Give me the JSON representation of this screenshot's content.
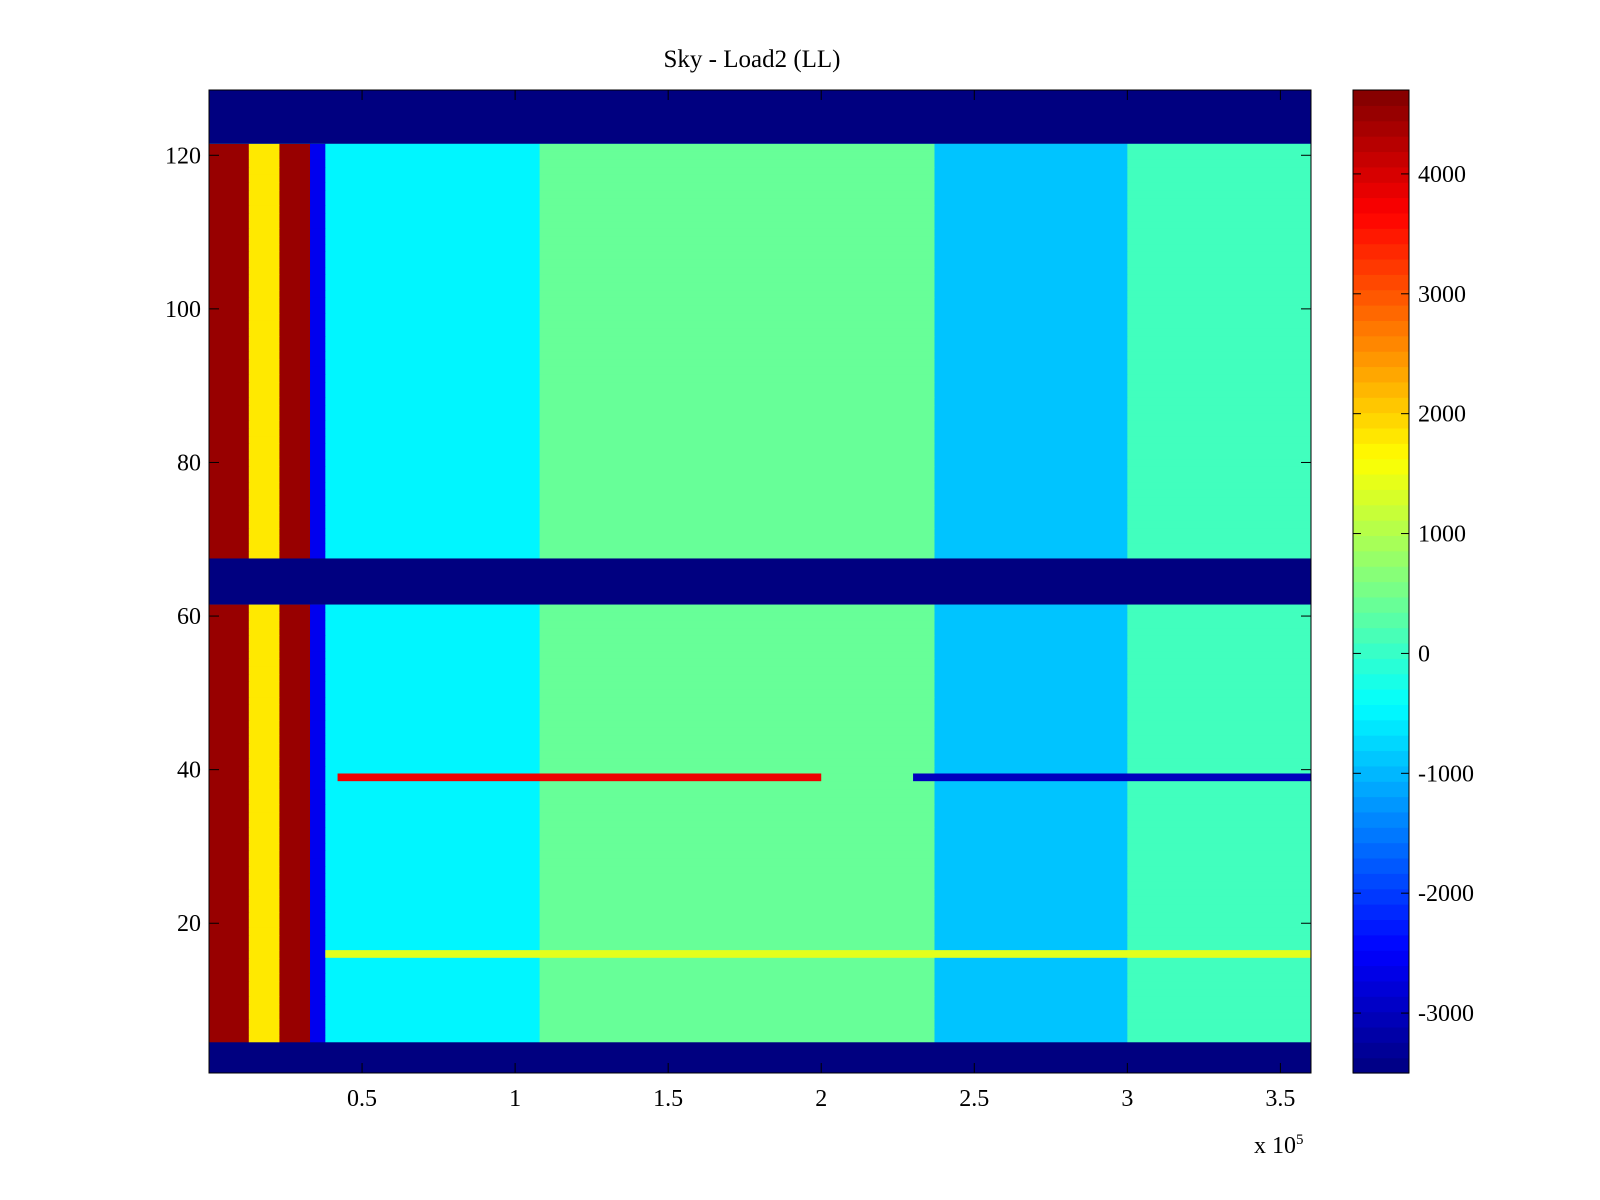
{
  "chart_data": {
    "type": "heatmap",
    "title": "Sky - Load2 (LL)",
    "xlabel": "",
    "ylabel": "",
    "x_exponent_label": "x 10",
    "x_exponent_power": "5",
    "xlim": [
      0,
      3.6
    ],
    "ylim": [
      0.5,
      128.5
    ],
    "x_ticks": [
      {
        "value": 0.5,
        "label": "0.5"
      },
      {
        "value": 1,
        "label": "1"
      },
      {
        "value": 1.5,
        "label": "1.5"
      },
      {
        "value": 2,
        "label": "2"
      },
      {
        "value": 2.5,
        "label": "2.5"
      },
      {
        "value": 3,
        "label": "3"
      },
      {
        "value": 3.5,
        "label": "3.5"
      }
    ],
    "y_ticks": [
      {
        "value": 20,
        "label": "20"
      },
      {
        "value": 40,
        "label": "40"
      },
      {
        "value": 60,
        "label": "60"
      },
      {
        "value": 80,
        "label": "80"
      },
      {
        "value": 100,
        "label": "100"
      },
      {
        "value": 120,
        "label": "120"
      }
    ],
    "colorbar": {
      "colormap": "jet",
      "range": [
        -3500,
        4700
      ],
      "ticks": [
        {
          "value": -3000,
          "label": "-3000"
        },
        {
          "value": -2000,
          "label": "-2000"
        },
        {
          "value": -1000,
          "label": "-1000"
        },
        {
          "value": 0,
          "label": "0"
        },
        {
          "value": 1000,
          "label": "1000"
        },
        {
          "value": 2000,
          "label": "2000"
        },
        {
          "value": 3000,
          "label": "3000"
        },
        {
          "value": 4000,
          "label": "4000"
        }
      ]
    },
    "masked_rows": [
      [
        1,
        4
      ],
      [
        62,
        67
      ],
      [
        122,
        128
      ]
    ],
    "baseline_value": -300,
    "x_segments": [
      {
        "x0": 0,
        "x1": 0.13,
        "value": 4500
      },
      {
        "x0": 0.13,
        "x1": 0.23,
        "value": 1800
      },
      {
        "x0": 0.23,
        "x1": 0.33,
        "value": 4500
      },
      {
        "x0": 0.33,
        "x1": 0.38,
        "value": -2600
      },
      {
        "x0": 0.38,
        "x1": 1.08,
        "value": -500
      },
      {
        "x0": 1.08,
        "x1": 2.37,
        "value": 400
      },
      {
        "x0": 2.37,
        "x1": 3.0,
        "value": -900
      },
      {
        "x0": 3.0,
        "x1": 3.6,
        "value": 100
      }
    ],
    "highlighted_rows": [
      {
        "row": 39,
        "x0": 0.42,
        "x1": 2.0,
        "value": 3800
      },
      {
        "row": 39,
        "x0": 2.3,
        "x1": 3.6,
        "value": -3000
      },
      {
        "row": 16,
        "x0": 0.38,
        "x1": 3.6,
        "value": 1400
      }
    ]
  }
}
